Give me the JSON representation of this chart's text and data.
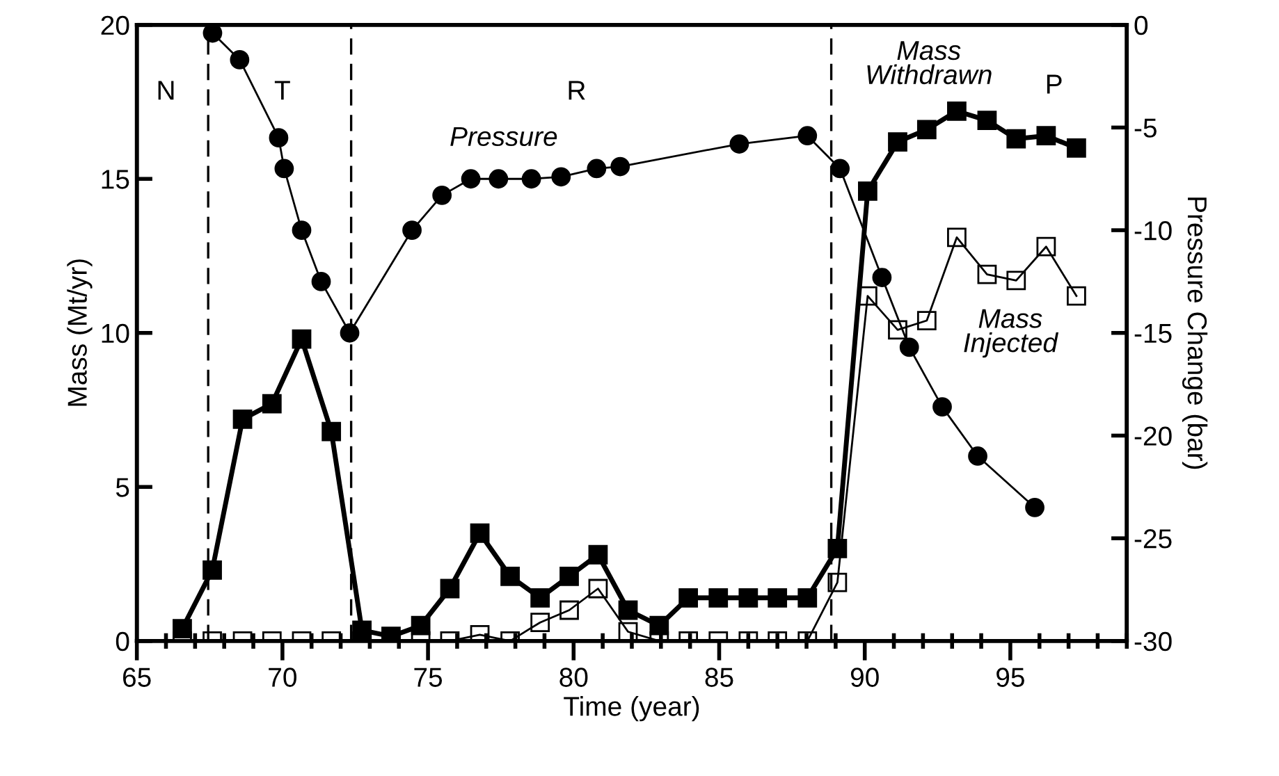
{
  "chart_data": {
    "type": "line",
    "xlabel": "Time (year)",
    "ylabel": "Mass (Mt/yr)",
    "y2label": "Pressure Change (bar)",
    "xlim": [
      65,
      99
    ],
    "xticks": [
      65,
      70,
      75,
      80,
      85,
      90,
      95
    ],
    "ylim": [
      0,
      20
    ],
    "yticks": [
      0,
      5,
      10,
      15,
      20
    ],
    "y2lim": [
      -30,
      0
    ],
    "y2ticks": [
      -30,
      -25,
      -20,
      -15,
      -10,
      -5,
      0
    ],
    "grid": false,
    "legend": false,
    "ref_lines": [
      {
        "axis": "x",
        "value": 67.45,
        "line_style": "dashed",
        "color": "#000000"
      },
      {
        "axis": "x",
        "value": 72.36,
        "line_style": "dashed",
        "color": "#000000"
      },
      {
        "axis": "x",
        "value": 88.85,
        "line_style": "dashed",
        "color": "#000000"
      }
    ],
    "annotations": [
      "N",
      "T",
      "R",
      "P"
    ],
    "series": [
      {
        "name": "Pressure",
        "axis": "y2",
        "marker": "circle",
        "color": "#000000",
        "x": [
          67.6,
          68.53,
          69.87,
          70.06,
          70.66,
          71.33,
          72.31,
          74.45,
          75.48,
          76.47,
          77.42,
          78.55,
          79.57,
          80.79,
          81.6,
          85.69,
          88.03,
          89.15,
          90.59,
          91.53,
          92.66,
          93.88,
          95.84
        ],
        "values": [
          -0.4,
          -1.7,
          -5.5,
          -7.0,
          -10.0,
          -12.5,
          -15.0,
          -10.0,
          -8.3,
          -7.5,
          -7.5,
          -7.5,
          -7.4,
          -7.0,
          -6.9,
          -5.8,
          -5.4,
          -7.0,
          -12.3,
          -15.7,
          -18.6,
          -21.0,
          -23.5
        ]
      },
      {
        "name": "Mass Withdrawn",
        "marker": "square",
        "color": "#000000",
        "x": [
          66.56,
          67.59,
          68.63,
          69.64,
          70.66,
          71.68,
          72.73,
          73.73,
          74.75,
          75.75,
          76.78,
          77.82,
          78.85,
          79.85,
          80.84,
          81.87,
          82.94,
          83.94,
          84.97,
          86.0,
          87.0,
          88.03,
          89.06,
          90.1,
          91.13,
          92.13,
          93.16,
          94.2,
          95.2,
          96.23,
          97.27
        ],
        "values": [
          0.4,
          2.3,
          7.2,
          7.7,
          9.8,
          6.8,
          0.35,
          0.15,
          0.5,
          1.7,
          3.5,
          2.1,
          1.4,
          2.1,
          2.8,
          1.0,
          0.5,
          1.4,
          1.4,
          1.4,
          1.4,
          1.4,
          3.0,
          14.6,
          16.2,
          16.6,
          17.2,
          16.9,
          16.3,
          16.4,
          16.0
        ]
      },
      {
        "name": "Mass Injected",
        "marker": "square",
        "color": "#000000",
        "x": [
          66.56,
          67.59,
          68.63,
          69.64,
          70.66,
          71.68,
          72.73,
          73.73,
          74.75,
          75.75,
          76.78,
          77.82,
          78.85,
          79.85,
          80.84,
          81.87,
          82.94,
          83.94,
          84.97,
          86.0,
          87.0,
          88.03,
          89.06,
          90.1,
          91.13,
          92.13,
          93.16,
          94.2,
          95.2,
          96.23,
          97.27
        ],
        "values": [
          0,
          0,
          0,
          0,
          0,
          0,
          0,
          0,
          0,
          0,
          0.2,
          0,
          0.6,
          1.0,
          1.7,
          0.3,
          0,
          0,
          0,
          0,
          0,
          0,
          1.9,
          11.2,
          10.1,
          10.4,
          13.1,
          11.9,
          11.7,
          12.8,
          11.2
        ]
      }
    ]
  }
}
